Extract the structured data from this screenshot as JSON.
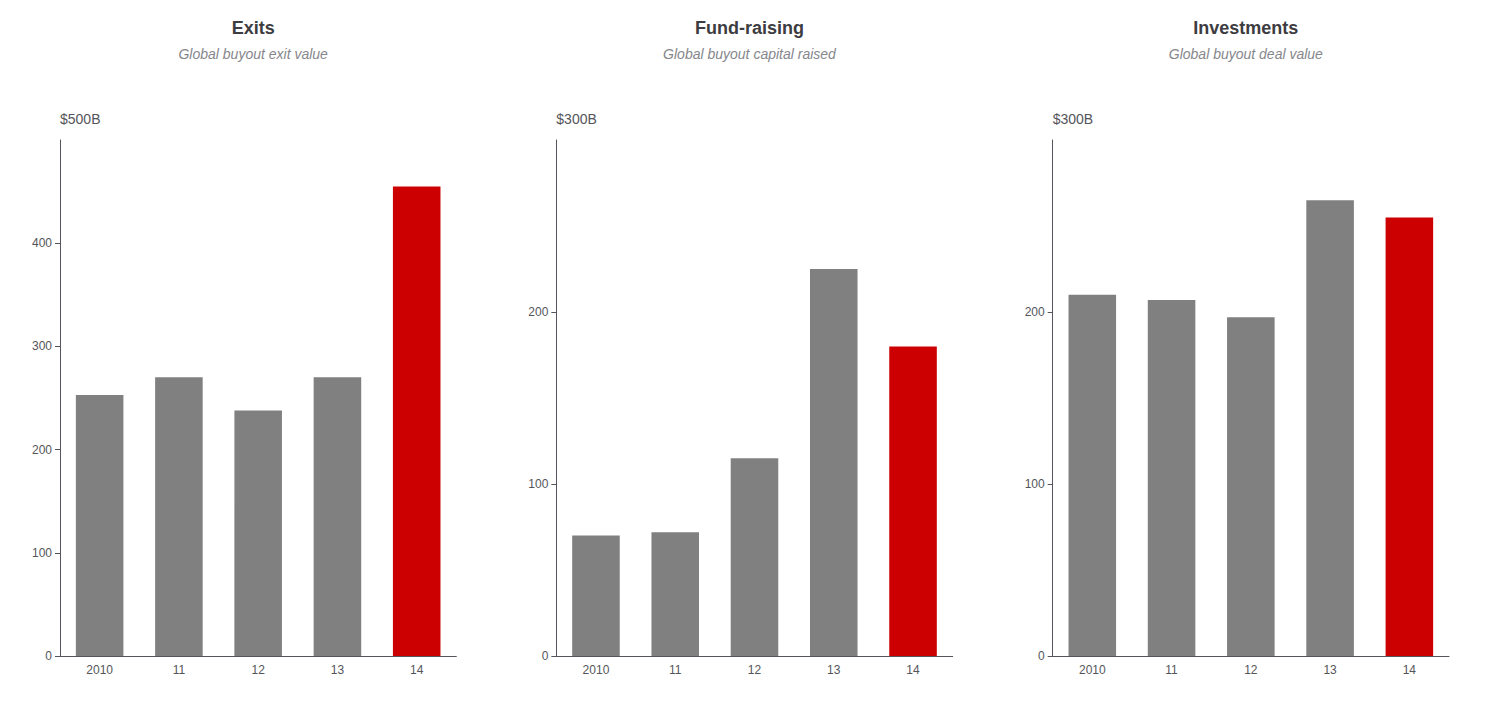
{
  "chart_data": [
    {
      "type": "bar",
      "title": "Exits",
      "subtitle": "Global buyout exit value",
      "ylabel": "$500B",
      "categories": [
        "2010",
        "11",
        "12",
        "13",
        "14"
      ],
      "values": [
        253,
        270,
        238,
        270,
        455
      ],
      "colors": [
        "#808080",
        "#808080",
        "#808080",
        "#808080",
        "#cc0000"
      ],
      "ylim": [
        0,
        500
      ],
      "yticks": [
        0,
        100,
        200,
        300,
        400
      ],
      "grid": false
    },
    {
      "type": "bar",
      "title": "Fund-raising",
      "subtitle": "Global buyout capital raised",
      "ylabel": "$300B",
      "categories": [
        "2010",
        "11",
        "12",
        "13",
        "14"
      ],
      "values": [
        70,
        72,
        115,
        225,
        180
      ],
      "colors": [
        "#808080",
        "#808080",
        "#808080",
        "#808080",
        "#cc0000"
      ],
      "ylim": [
        0,
        300
      ],
      "yticks": [
        0,
        100,
        200
      ],
      "grid": false
    },
    {
      "type": "bar",
      "title": "Investments",
      "subtitle": "Global buyout deal value",
      "ylabel": "$300B",
      "categories": [
        "2010",
        "11",
        "12",
        "13",
        "14"
      ],
      "values": [
        210,
        207,
        197,
        265,
        255
      ],
      "colors": [
        "#808080",
        "#808080",
        "#808080",
        "#808080",
        "#cc0000"
      ],
      "ylim": [
        0,
        300
      ],
      "yticks": [
        0,
        100,
        200
      ],
      "grid": false
    }
  ]
}
